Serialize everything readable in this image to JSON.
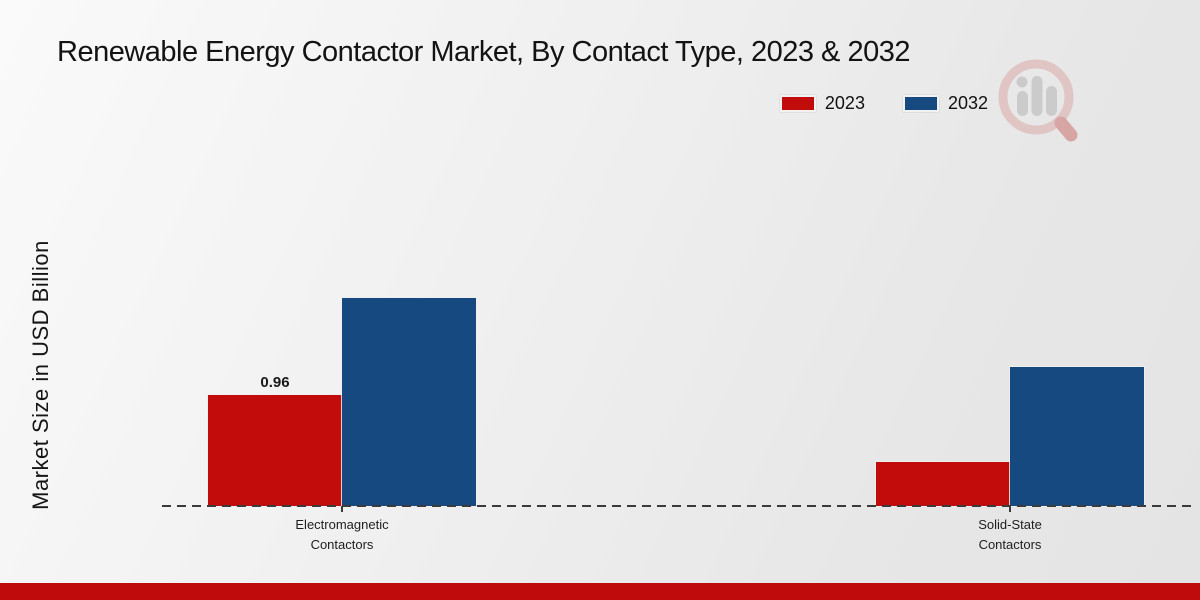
{
  "header": {
    "title": "Renewable Energy Contactor Market, By Contact Type, 2023 & 2032"
  },
  "legend": {
    "position": "top-right",
    "items": [
      {
        "label": "2023",
        "color": "#c20c0c"
      },
      {
        "label": "2032",
        "color": "#15497f"
      }
    ]
  },
  "watermark_icon": "magnifier-bar-chart-logo",
  "footer": {
    "bar_color": "#bf0b0b"
  },
  "chart_data": {
    "type": "bar",
    "title": "Renewable Energy Contactor Market, By Contact Type, 2023 & 2032",
    "xlabel": "",
    "ylabel": "Market Size in USD Billion",
    "categories": [
      "Electromagnetic\nContactors",
      "Solid-State\nContactors"
    ],
    "series": [
      {
        "name": "2023",
        "color": "#c20c0c",
        "values": [
          0.96,
          0.38
        ],
        "data_labels": [
          "0.96",
          ""
        ]
      },
      {
        "name": "2032",
        "color": "#15497f",
        "values": [
          1.8,
          1.2
        ],
        "data_labels": [
          "",
          ""
        ]
      }
    ],
    "ylim": [
      0,
      2.2
    ],
    "y_axis_ticks_visible": false,
    "grid": false,
    "baseline_style": "dashed",
    "legend_position": "top-right"
  }
}
